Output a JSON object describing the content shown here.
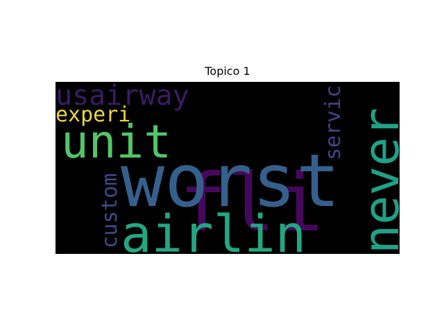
{
  "figure": {
    "title": "Topico 1"
  },
  "wordcloud": {
    "background": "#000000",
    "words": [
      {
        "key": "fli",
        "text": "fli",
        "color": "#46085c"
      },
      {
        "key": "worst",
        "text": "worst",
        "color": "#35608d"
      },
      {
        "key": "unit",
        "text": "unit",
        "color": "#52c569"
      },
      {
        "key": "airlin",
        "text": "airlin",
        "color": "#23a783"
      },
      {
        "key": "never",
        "text": "never",
        "color": "#1fa287"
      },
      {
        "key": "usairway",
        "text": "usairway",
        "color": "#3b1b65"
      },
      {
        "key": "experi",
        "text": "experi",
        "color": "#ecd741"
      },
      {
        "key": "servic",
        "text": "servic",
        "color": "#414487"
      },
      {
        "key": "custom",
        "text": "custom",
        "color": "#3f4b8a"
      }
    ]
  }
}
